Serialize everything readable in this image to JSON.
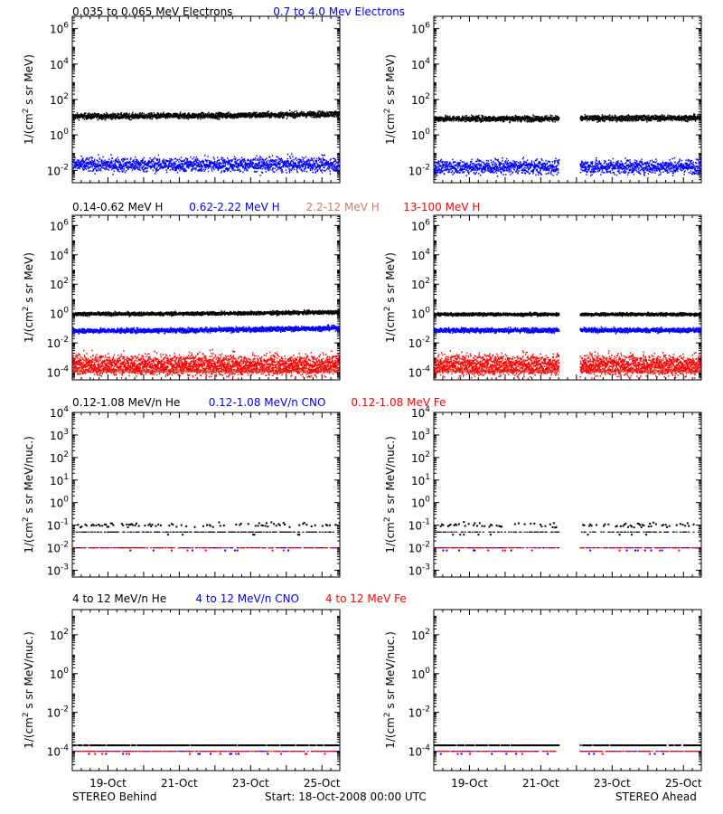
{
  "colors": {
    "black": "#000000",
    "blue": "#0000ff",
    "salmon": "#c08070",
    "red": "#ff0000",
    "background": "#ffffff"
  },
  "footer": {
    "left": "STEREO Behind",
    "center": "Start: 18-Oct-2008 00:00 UTC",
    "right": "STEREO Ahead"
  },
  "rows": [
    {
      "legend": [
        {
          "text": "0.035 to 0.065 MeV Electrons",
          "color": "black"
        },
        {
          "text": "0.7 to 4.0 Mev Electrons",
          "color": "blue"
        }
      ],
      "ylabel_main": "1/(cm",
      "ylabel_sup": "2",
      "ylabel_rest": " s sr MeV)",
      "yticks": [
        {
          "base": "10",
          "exp": "6",
          "value": 1000000.0
        },
        {
          "base": "10",
          "exp": "4",
          "value": 10000.0
        },
        {
          "base": "10",
          "exp": "2",
          "value": 100.0
        },
        {
          "base": "10",
          "exp": "0",
          "value": 1
        },
        {
          "base": "10",
          "exp": "-2",
          "value": 0.01
        }
      ]
    },
    {
      "legend": [
        {
          "text": "0.14-0.62 MeV H",
          "color": "black"
        },
        {
          "text": "0.62-2.22 MeV H",
          "color": "blue"
        },
        {
          "text": "2.2-12 MeV H",
          "color": "salmon"
        },
        {
          "text": "13-100 MeV H",
          "color": "red"
        }
      ],
      "ylabel_main": "1/(cm",
      "ylabel_sup": "2",
      "ylabel_rest": " s sr MeV)",
      "yticks": [
        {
          "base": "10",
          "exp": "6",
          "value": 1000000.0
        },
        {
          "base": "10",
          "exp": "4",
          "value": 10000.0
        },
        {
          "base": "10",
          "exp": "2",
          "value": 100.0
        },
        {
          "base": "10",
          "exp": "0",
          "value": 1
        },
        {
          "base": "10",
          "exp": "-2",
          "value": 0.01
        },
        {
          "base": "10",
          "exp": "-4",
          "value": 0.0001
        }
      ]
    },
    {
      "legend": [
        {
          "text": "0.12-1.08 MeV/n He",
          "color": "black"
        },
        {
          "text": "0.12-1.08 MeV/n CNO",
          "color": "blue"
        },
        {
          "text": "0.12-1.08 MeV Fe",
          "color": "red"
        }
      ],
      "ylabel_main": "1/(cm",
      "ylabel_sup": "2",
      "ylabel_rest": " s sr MeV/nuc.)",
      "yticks": [
        {
          "base": "10",
          "exp": "4",
          "value": 10000.0
        },
        {
          "base": "10",
          "exp": "3",
          "value": 1000.0
        },
        {
          "base": "10",
          "exp": "2",
          "value": 100.0
        },
        {
          "base": "10",
          "exp": "1",
          "value": 10.0
        },
        {
          "base": "10",
          "exp": "0",
          "value": 1
        },
        {
          "base": "10",
          "exp": "-1",
          "value": 0.1
        },
        {
          "base": "10",
          "exp": "-2",
          "value": 0.01
        },
        {
          "base": "10",
          "exp": "-3",
          "value": 0.001
        }
      ]
    },
    {
      "legend": [
        {
          "text": "4 to 12 MeV/n He",
          "color": "black"
        },
        {
          "text": "4 to 12 MeV/n CNO",
          "color": "blue"
        },
        {
          "text": "4 to 12 MeV Fe",
          "color": "red"
        }
      ],
      "ylabel_main": "1/(cm",
      "ylabel_sup": "2",
      "ylabel_rest": " s sr MeV/nuc.)",
      "yticks": [
        {
          "base": "10",
          "exp": "2",
          "value": 100.0
        },
        {
          "base": "10",
          "exp": "0",
          "value": 1
        },
        {
          "base": "10",
          "exp": "-2",
          "value": 0.01
        },
        {
          "base": "10",
          "exp": "-4",
          "value": 0.0001
        }
      ]
    }
  ],
  "chart_data": [
    {
      "type": "scatter",
      "panel": "STEREO Behind - electrons",
      "x_range": [
        "2008-10-18 00:00",
        "2008-10-25 12:00"
      ],
      "ylim": [
        0.002,
        5000000
      ],
      "log_y": true,
      "gaps": [],
      "xtick_labels": [],
      "series": [
        {
          "name": "0.035 to 0.065 MeV Electrons",
          "color": "black",
          "level_start": 11,
          "level_end": 15,
          "scatter": 0.08
        },
        {
          "name": "0.7 to 4.0 Mev Electrons",
          "color": "blue",
          "level_start": 0.02,
          "level_end": 0.021,
          "scatter": 0.2
        }
      ]
    },
    {
      "type": "scatter",
      "panel": "STEREO Ahead - electrons",
      "x_range": [
        "2008-10-18 00:00",
        "2008-10-25 12:00"
      ],
      "ylim": [
        0.002,
        5000000
      ],
      "log_y": true,
      "gaps": [
        [
          "2008-10-21 12:00",
          "2008-10-22 02:00"
        ]
      ],
      "xtick_labels": [],
      "series": [
        {
          "name": "0.035 to 0.065 MeV Electrons",
          "color": "black",
          "level_start": 8,
          "level_end": 9,
          "scatter": 0.08
        },
        {
          "name": "0.7 to 4.0 Mev Electrons",
          "color": "blue",
          "level_start": 0.015,
          "level_end": 0.016,
          "scatter": 0.2
        }
      ]
    },
    {
      "type": "scatter",
      "panel": "STEREO Behind - protons",
      "x_range": [
        "2008-10-18 00:00",
        "2008-10-25 12:00"
      ],
      "ylim": [
        3e-05,
        5000000
      ],
      "log_y": true,
      "gaps": [],
      "xtick_labels": [],
      "series": [
        {
          "name": "0.14-0.62 MeV H",
          "color": "black",
          "level_start": 0.9,
          "level_end": 1.2,
          "scatter": 0.06
        },
        {
          "name": "0.62-2.22 MeV H",
          "color": "blue",
          "level_start": 0.065,
          "level_end": 0.1,
          "scatter": 0.08
        },
        {
          "name": "2.2-12 MeV H",
          "color": "salmon",
          "level_start": 0.00012,
          "level_end": 0.00012,
          "scatter": 0.05
        },
        {
          "name": "13-100 MeV H",
          "color": "red",
          "level_start": 0.0003,
          "level_end": 0.0003,
          "scatter": 0.35
        }
      ]
    },
    {
      "type": "scatter",
      "panel": "STEREO Ahead - protons",
      "x_range": [
        "2008-10-18 00:00",
        "2008-10-25 12:00"
      ],
      "ylim": [
        3e-05,
        5000000
      ],
      "log_y": true,
      "gaps": [
        [
          "2008-10-21 12:00",
          "2008-10-22 02:00"
        ]
      ],
      "xtick_labels": [],
      "series": [
        {
          "name": "0.14-0.62 MeV H",
          "color": "black",
          "level_start": 0.85,
          "level_end": 0.85,
          "scatter": 0.05
        },
        {
          "name": "0.62-2.22 MeV H",
          "color": "blue",
          "level_start": 0.07,
          "level_end": 0.07,
          "scatter": 0.08
        },
        {
          "name": "2.2-12 MeV H",
          "color": "salmon",
          "level_start": 0.00012,
          "level_end": 0.00012,
          "scatter": 0.05
        },
        {
          "name": "13-100 MeV H",
          "color": "red",
          "level_start": 0.0003,
          "level_end": 0.0003,
          "scatter": 0.35
        }
      ]
    },
    {
      "type": "scatter",
      "panel": "STEREO Behind - low energy heavy ions",
      "x_range": [
        "2008-10-18 00:00",
        "2008-10-25 12:00"
      ],
      "ylim": [
        0.0005,
        10000
      ],
      "log_y": true,
      "gaps": [],
      "xtick_labels": [],
      "series": [
        {
          "name": "0.12-1.08 MeV/n He",
          "color": "black",
          "level_start": 0.1,
          "level_end": 0.11,
          "scatter": 0.05
        },
        {
          "name": "0.12-1.08 MeV/n He (lower)",
          "color": "black",
          "level_start": 0.05,
          "level_end": 0.05,
          "scatter": 0.0
        },
        {
          "name": "0.12-1.08 MeV/n CNO",
          "color": "blue",
          "level_start": 0.01,
          "level_end": 0.01,
          "scatter": 0.0
        },
        {
          "name": "0.12-1.08 MeV Fe",
          "color": "red",
          "level_start": 0.01,
          "level_end": 0.01,
          "scatter": 0.0
        }
      ]
    },
    {
      "type": "scatter",
      "panel": "STEREO Ahead - low energy heavy ions",
      "x_range": [
        "2008-10-18 00:00",
        "2008-10-25 12:00"
      ],
      "ylim": [
        0.0005,
        10000
      ],
      "log_y": true,
      "gaps": [
        [
          "2008-10-21 12:00",
          "2008-10-22 02:00"
        ]
      ],
      "xtick_labels": [],
      "series": [
        {
          "name": "0.12-1.08 MeV/n He",
          "color": "black",
          "level_start": 0.1,
          "level_end": 0.1,
          "scatter": 0.05
        },
        {
          "name": "0.12-1.08 MeV/n He (lower)",
          "color": "black",
          "level_start": 0.05,
          "level_end": 0.05,
          "scatter": 0.0
        },
        {
          "name": "0.12-1.08 MeV/n CNO",
          "color": "blue",
          "level_start": 0.01,
          "level_end": 0.01,
          "scatter": 0.0
        },
        {
          "name": "0.12-1.08 MeV Fe",
          "color": "red",
          "level_start": 0.01,
          "level_end": 0.01,
          "scatter": 0.0
        }
      ]
    },
    {
      "type": "scatter",
      "panel": "STEREO Behind - high energy heavy ions",
      "x_range": [
        "2008-10-18 00:00",
        "2008-10-25 12:00"
      ],
      "ylim": [
        1e-05,
        2000
      ],
      "log_y": true,
      "gaps": [],
      "xtick_labels": [
        "19-Oct",
        "21-Oct",
        "23-Oct",
        "25-Oct"
      ],
      "series": [
        {
          "name": "4 to 12 MeV/n He",
          "color": "black",
          "level_start": 0.0002,
          "level_end": 0.0002,
          "scatter": 0.0
        },
        {
          "name": "4 to 12 MeV/n CNO",
          "color": "blue",
          "level_start": 0.0001,
          "level_end": 0.0001,
          "scatter": 0.0
        },
        {
          "name": "4 to 12 MeV Fe",
          "color": "red",
          "level_start": 0.0001,
          "level_end": 0.0001,
          "scatter": 0.0
        }
      ]
    },
    {
      "type": "scatter",
      "panel": "STEREO Ahead - high energy heavy ions",
      "x_range": [
        "2008-10-18 00:00",
        "2008-10-25 12:00"
      ],
      "ylim": [
        1e-05,
        2000
      ],
      "log_y": true,
      "gaps": [
        [
          "2008-10-21 12:00",
          "2008-10-22 02:00"
        ]
      ],
      "xtick_labels": [
        "19-Oct",
        "21-Oct",
        "23-Oct",
        "25-Oct"
      ],
      "series": [
        {
          "name": "4 to 12 MeV/n He",
          "color": "black",
          "level_start": 0.0002,
          "level_end": 0.0002,
          "scatter": 0.0
        },
        {
          "name": "4 to 12 MeV/n CNO",
          "color": "blue",
          "level_start": 0.0001,
          "level_end": 0.0001,
          "scatter": 0.0
        },
        {
          "name": "4 to 12 MeV Fe",
          "color": "red",
          "level_start": 0.0001,
          "level_end": 0.0001,
          "scatter": 0.0
        }
      ]
    }
  ]
}
